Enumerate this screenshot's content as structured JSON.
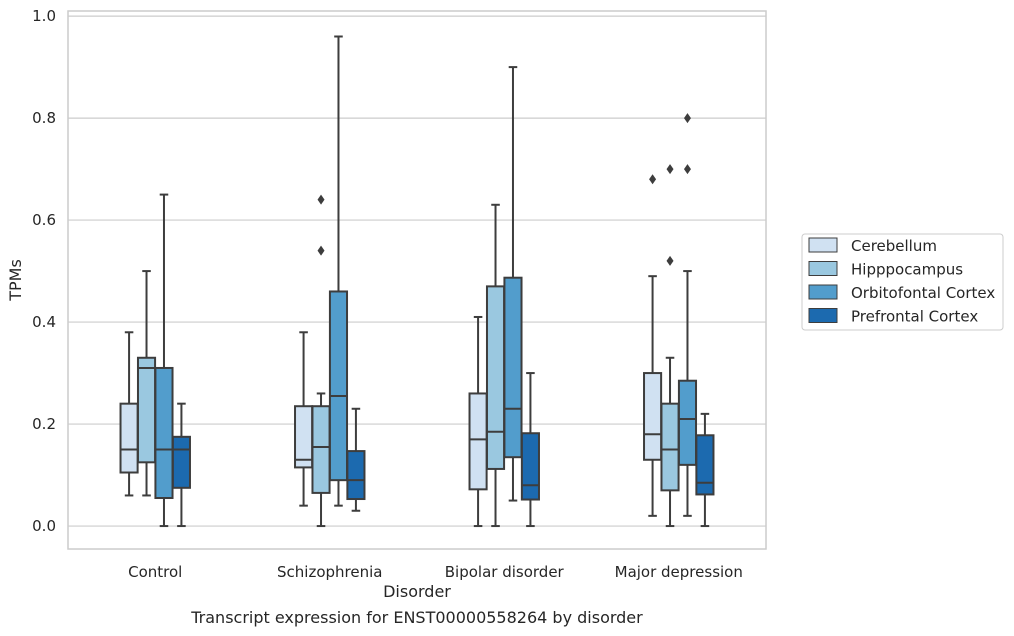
{
  "caption": "Transcript expression for ENST00000558264 by disorder",
  "chart_data": {
    "type": "box",
    "xlabel": "Disorder",
    "ylabel": "TPMs",
    "ylim": [
      -0.045,
      1.01
    ],
    "yticks": [
      "0.0",
      "0.2",
      "0.4",
      "0.6",
      "0.8",
      "1.0"
    ],
    "grid": true,
    "legend_position": "right",
    "categories": [
      "Control",
      "Schizophrenia",
      "Bipolar disorder",
      "Major depression"
    ],
    "series": [
      {
        "name": "Cerebellum",
        "color": "#d0e1f2",
        "boxes": [
          {
            "whislo": 0.06,
            "q1": 0.105,
            "med": 0.15,
            "q3": 0.24,
            "whishi": 0.38,
            "fliers": []
          },
          {
            "whislo": 0.04,
            "q1": 0.115,
            "med": 0.13,
            "q3": 0.235,
            "whishi": 0.38,
            "fliers": []
          },
          {
            "whislo": 0.0,
            "q1": 0.072,
            "med": 0.17,
            "q3": 0.26,
            "whishi": 0.41,
            "fliers": []
          },
          {
            "whislo": 0.02,
            "q1": 0.13,
            "med": 0.18,
            "q3": 0.3,
            "whishi": 0.49,
            "fliers": [
              0.68
            ]
          }
        ]
      },
      {
        "name": "Hipppocampus",
        "color": "#9ac8e0",
        "boxes": [
          {
            "whislo": 0.06,
            "q1": 0.125,
            "med": 0.31,
            "q3": 0.33,
            "whishi": 0.5,
            "fliers": []
          },
          {
            "whislo": 0.0,
            "q1": 0.065,
            "med": 0.155,
            "q3": 0.235,
            "whishi": 0.26,
            "fliers": [
              0.54,
              0.64
            ]
          },
          {
            "whislo": 0.0,
            "q1": 0.112,
            "med": 0.185,
            "q3": 0.47,
            "whishi": 0.63,
            "fliers": []
          },
          {
            "whislo": 0.0,
            "q1": 0.07,
            "med": 0.15,
            "q3": 0.24,
            "whishi": 0.33,
            "fliers": [
              0.52,
              0.7
            ]
          }
        ]
      },
      {
        "name": "Orbitofontal Cortex",
        "color": "#529dcc",
        "boxes": [
          {
            "whislo": 0.0,
            "q1": 0.055,
            "med": 0.15,
            "q3": 0.31,
            "whishi": 0.65,
            "fliers": []
          },
          {
            "whislo": 0.04,
            "q1": 0.09,
            "med": 0.255,
            "q3": 0.46,
            "whishi": 0.96,
            "fliers": []
          },
          {
            "whislo": 0.05,
            "q1": 0.135,
            "med": 0.23,
            "q3": 0.487,
            "whishi": 0.9,
            "fliers": []
          },
          {
            "whislo": 0.02,
            "q1": 0.12,
            "med": 0.21,
            "q3": 0.285,
            "whishi": 0.5,
            "fliers": [
              0.7,
              0.8
            ]
          }
        ]
      },
      {
        "name": "Prefrontal Cortex",
        "color": "#1c6aaf",
        "boxes": [
          {
            "whislo": 0.0,
            "q1": 0.075,
            "med": 0.15,
            "q3": 0.175,
            "whishi": 0.24,
            "fliers": []
          },
          {
            "whislo": 0.03,
            "q1": 0.053,
            "med": 0.09,
            "q3": 0.147,
            "whishi": 0.23,
            "fliers": []
          },
          {
            "whislo": 0.0,
            "q1": 0.052,
            "med": 0.08,
            "q3": 0.182,
            "whishi": 0.3,
            "fliers": []
          },
          {
            "whislo": 0.0,
            "q1": 0.062,
            "med": 0.085,
            "q3": 0.178,
            "whishi": 0.22,
            "fliers": []
          }
        ]
      }
    ]
  }
}
